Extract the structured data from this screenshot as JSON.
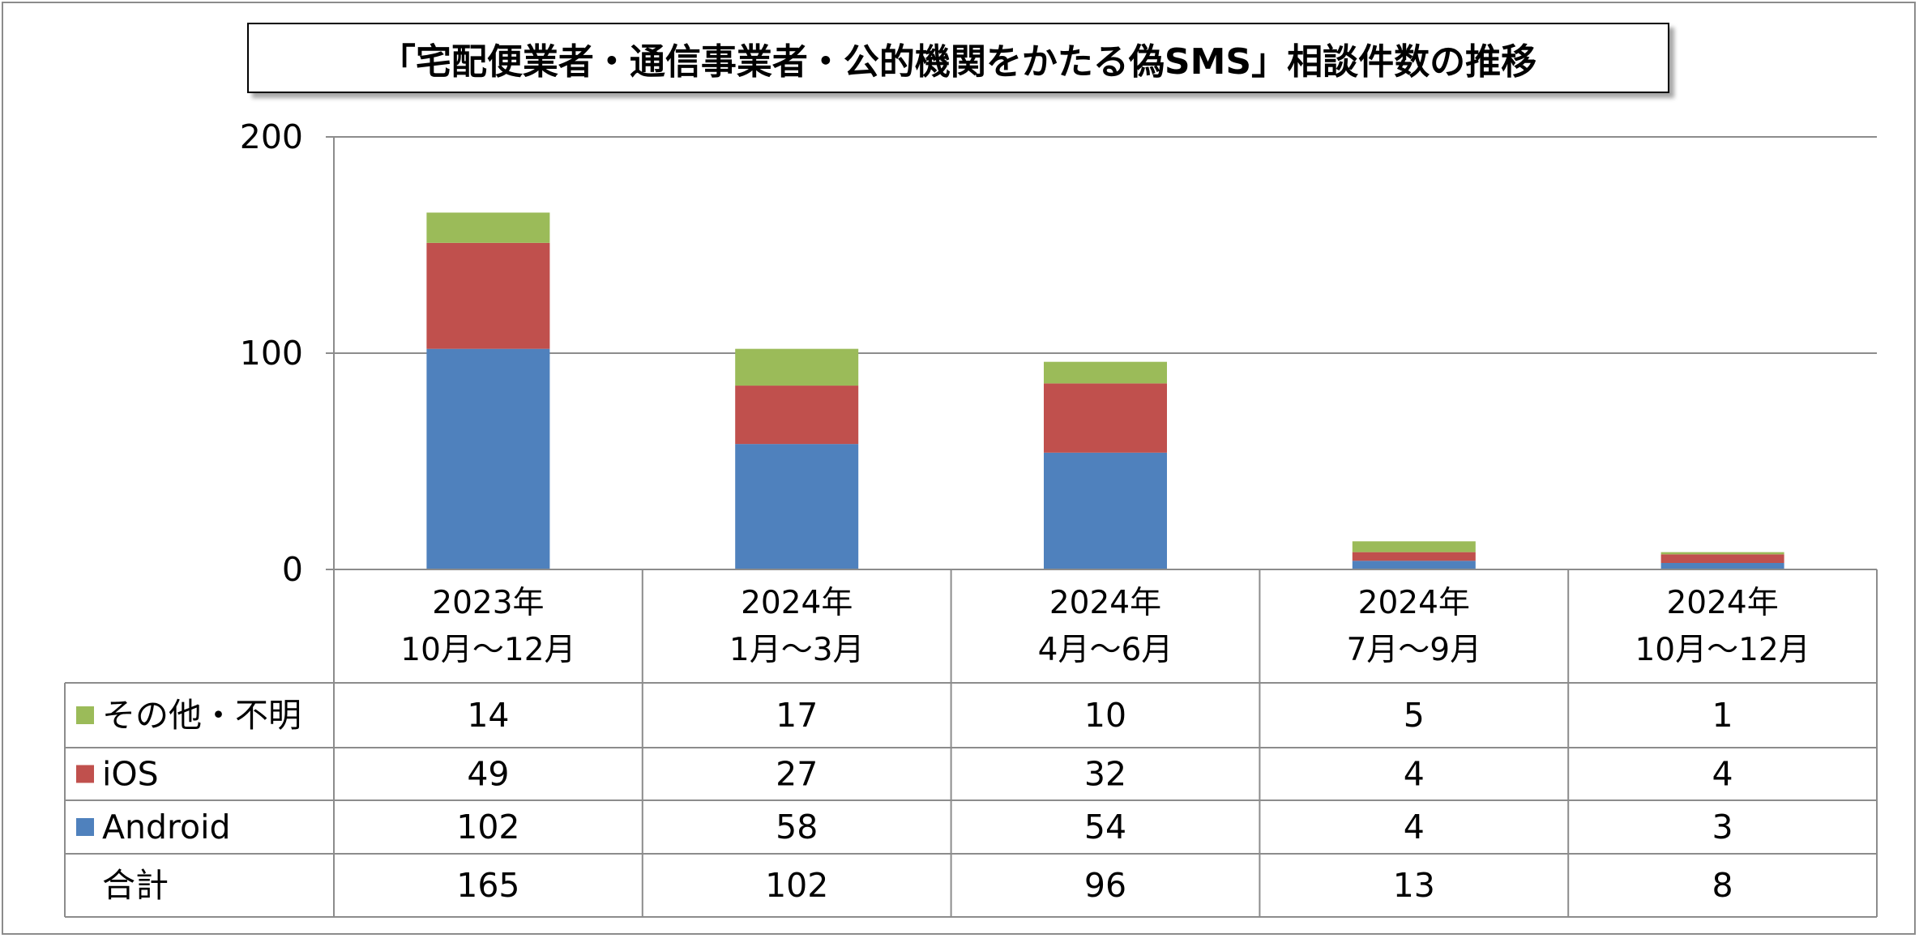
{
  "chart_data": {
    "type": "bar",
    "stacked": true,
    "title": "「宅配便業者・通信事業者・公的機関をかたる偽SMS」相談件数の推移",
    "categories": [
      [
        "2023年",
        "10月～12月"
      ],
      [
        "2024年",
        "1月～3月"
      ],
      [
        "2024年",
        "4月～6月"
      ],
      [
        "2024年",
        "7月～9月"
      ],
      [
        "2024年",
        "10月～12月"
      ]
    ],
    "series": [
      {
        "name": "Android",
        "color": "#4f81bd",
        "values": [
          102,
          58,
          54,
          4,
          3
        ]
      },
      {
        "name": "iOS",
        "color": "#c0504d",
        "values": [
          49,
          27,
          32,
          4,
          4
        ]
      },
      {
        "name": "その他・不明",
        "color": "#9bbb59",
        "values": [
          14,
          17,
          10,
          5,
          1
        ]
      }
    ],
    "table_rows": [
      {
        "label": "その他・不明",
        "series": 2
      },
      {
        "label": "iOS",
        "series": 1
      },
      {
        "label": "Android",
        "series": 0
      },
      {
        "label": "合計",
        "values": [
          165,
          102,
          96,
          13,
          8
        ]
      }
    ],
    "ylim": [
      0,
      200
    ],
    "yticks": [
      "0",
      "100",
      "200"
    ],
    "grid": true,
    "legend": "data-table"
  }
}
